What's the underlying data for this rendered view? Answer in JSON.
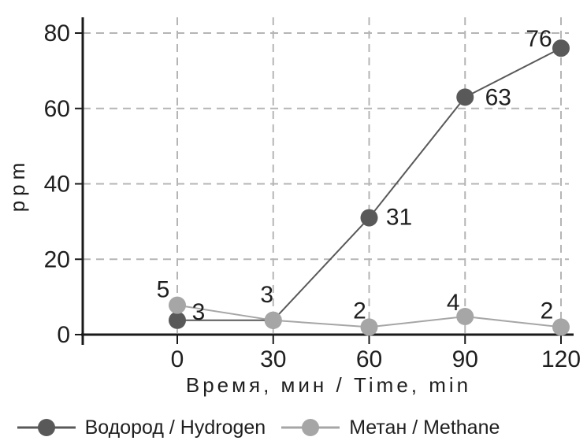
{
  "chart_data": {
    "type": "line",
    "title": "",
    "xlabel": "Время, мин / Time, min",
    "ylabel": "ppm",
    "x": [
      0,
      30,
      60,
      90,
      120
    ],
    "x_tick_labels": [
      "0",
      "30",
      "60",
      "90",
      "120"
    ],
    "y_ticks": [
      0,
      20,
      40,
      60,
      80
    ],
    "y_tick_labels": [
      "0",
      "20",
      "40",
      "60",
      "80"
    ],
    "ylim": [
      0,
      84
    ],
    "xlim_minutes": [
      -30,
      124
    ],
    "grid": {
      "horizontal": true,
      "vertical": true,
      "style": "dashed",
      "color": "#b5b5b5"
    },
    "axis_color": "#1a1a1a",
    "label_color": "#1a1a1a",
    "background": "#ffffff",
    "legend_position": "bottom",
    "series": [
      {
        "name": "Водород / Hydrogen",
        "color": "#595959",
        "values": [
          3,
          3,
          31,
          63,
          76
        ],
        "point_labels": [
          "3",
          "3",
          "31",
          "63",
          "76"
        ],
        "display_values": [
          3.8,
          3.8,
          31,
          63,
          76
        ],
        "label_offsets": [
          [
            27,
            -11
          ],
          [
            -8,
            -33
          ],
          [
            38,
            -1
          ],
          [
            42,
            0
          ],
          [
            -28,
            -12
          ]
        ]
      },
      {
        "name": "Метан / Methane",
        "color": "#a6a6a6",
        "values": [
          5,
          3,
          2,
          4,
          2
        ],
        "point_labels": [
          "5",
          null,
          "2",
          "4",
          "2"
        ],
        "display_values": [
          7.8,
          3.8,
          2,
          4.8,
          2
        ],
        "label_offsets": [
          [
            -18,
            -20
          ],
          null,
          [
            -12,
            -21
          ],
          [
            -15,
            -18
          ],
          [
            -18,
            -21
          ]
        ]
      }
    ]
  }
}
